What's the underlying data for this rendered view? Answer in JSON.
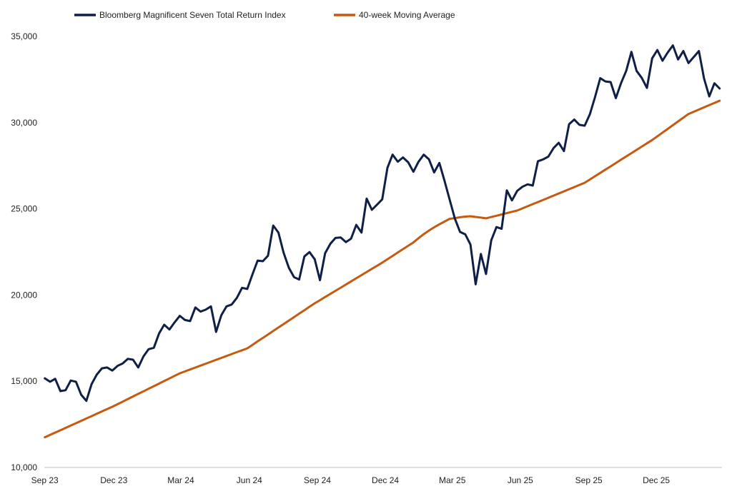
{
  "chart_data": {
    "type": "line",
    "title": "",
    "xlabel": "",
    "ylabel": "",
    "ylim": [
      10000,
      35000
    ],
    "y_ticks": [
      10000,
      15000,
      20000,
      25000,
      30000,
      35000
    ],
    "y_tick_labels": [
      "10,000",
      "15,000",
      "20,000",
      "25,000",
      "30,000",
      "35,000"
    ],
    "x_tick_labels": [
      "Sep 23",
      "Dec 23",
      "Mar 24",
      "Jun 24",
      "Sep 24",
      "Dec 24",
      "Mar 25",
      "Jun 25",
      "Sep 25",
      "Dec 25"
    ],
    "frequency": "weekly",
    "grid": false,
    "legend_position": "top",
    "series": [
      {
        "name": "Bloomberg Magnificent Seven Total Return Index",
        "color": "#0f1f45",
        "values": [
          15170,
          14970,
          15140,
          14430,
          14480,
          15040,
          14970,
          14220,
          13860,
          14830,
          15380,
          15750,
          15800,
          15620,
          15890,
          16030,
          16300,
          16250,
          15800,
          16440,
          16860,
          16940,
          17770,
          18280,
          18000,
          18410,
          18790,
          18550,
          18490,
          19280,
          19040,
          19150,
          19340,
          17860,
          18830,
          19340,
          19450,
          19840,
          20420,
          20350,
          21200,
          22000,
          21960,
          22280,
          24030,
          23620,
          22460,
          21590,
          21040,
          20900,
          22240,
          22490,
          22070,
          20860,
          22420,
          22970,
          23310,
          23340,
          23070,
          23270,
          24070,
          23620,
          25590,
          24940,
          25240,
          25550,
          27380,
          28140,
          27730,
          27980,
          27700,
          27150,
          27730,
          28140,
          27870,
          27110,
          27660,
          26630,
          25520,
          24420,
          23660,
          23520,
          22930,
          20620,
          22380,
          21220,
          23170,
          23940,
          23840,
          26070,
          25490,
          26040,
          26280,
          26420,
          26350,
          27760,
          27870,
          28030,
          28520,
          28830,
          28350,
          29910,
          30180,
          29870,
          29820,
          30490,
          31480,
          32580,
          32390,
          32350,
          31420,
          32280,
          33000,
          34100,
          33000,
          32590,
          32010,
          33730,
          34210,
          33590,
          34070,
          34480,
          33660,
          34150,
          33450,
          33800,
          34150,
          32560,
          31520,
          32280,
          31980
        ]
      },
      {
        "name": "40-week Moving Average",
        "color": "#c55a11",
        "values": [
          11750,
          11886,
          12022,
          12158,
          12295,
          12431,
          12567,
          12703,
          12839,
          12975,
          13112,
          13248,
          13384,
          13520,
          13669,
          13818,
          13968,
          14117,
          14266,
          14415,
          14564,
          14714,
          14863,
          15012,
          15161,
          15311,
          15460,
          15572,
          15683,
          15795,
          15906,
          16018,
          16129,
          16241,
          16352,
          16464,
          16575,
          16687,
          16798,
          16910,
          17111,
          17312,
          17512,
          17713,
          17914,
          18115,
          18316,
          18517,
          18718,
          18918,
          19119,
          19320,
          19520,
          19702,
          19883,
          20065,
          20246,
          20428,
          20609,
          20791,
          20972,
          21154,
          21335,
          21517,
          21698,
          21880,
          22075,
          22270,
          22465,
          22660,
          22855,
          23050,
          23300,
          23530,
          23740,
          23930,
          24100,
          24260,
          24420,
          24460,
          24510,
          24550,
          24570,
          24530,
          24490,
          24450,
          24525,
          24600,
          24675,
          24750,
          24825,
          24900,
          25024,
          25148,
          25272,
          25395,
          25519,
          25643,
          25767,
          25891,
          26015,
          26139,
          26262,
          26386,
          26510,
          26701,
          26892,
          27082,
          27273,
          27464,
          27655,
          27846,
          28037,
          28228,
          28418,
          28609,
          28800,
          28990,
          29206,
          29421,
          29637,
          29853,
          30069,
          30284,
          30500,
          30628,
          30757,
          30885,
          31013,
          31142,
          31270
        ]
      }
    ]
  }
}
